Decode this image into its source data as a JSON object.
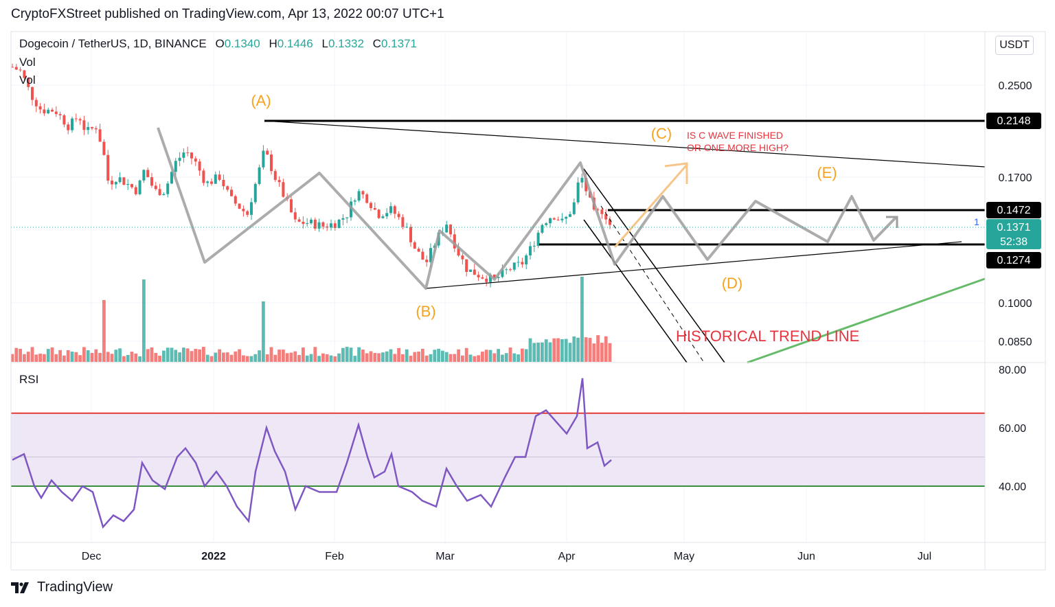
{
  "header": {
    "published_line": "CryptoFXStreet published on TradingView.com, Apr 13, 2022 00:07 UTC+1"
  },
  "symbol_bar": {
    "title": "Dogecoin / TetherUS, 1D, BINANCE",
    "open_key": "O",
    "open": "0.1340",
    "high_key": "H",
    "high": "0.1446",
    "low_key": "L",
    "low": "0.1332",
    "close_key": "C",
    "close": "0.1371"
  },
  "indicators": {
    "vol1": "Vol",
    "vol2": "Vol",
    "rsi": "RSI"
  },
  "currency_button": "USDT",
  "footer": {
    "brand": "TradingView"
  },
  "colors": {
    "up": "#26a69a",
    "down": "#ef5350",
    "orange": "#f7a21b",
    "red_text": "#e8323c",
    "trend_green": "#66bb6a",
    "rsi_line": "#7e57c2",
    "rsi_band": "#ede7f6",
    "rsi_upper": "#e53935",
    "rsi_lower": "#388e3c"
  },
  "chart_data": {
    "type": "candlestick",
    "title": "Dogecoin / TetherUS, 1D, BINANCE",
    "price_axis_ticks": [
      "0.2500",
      "0.1700",
      "0.1000",
      "0.0850"
    ],
    "price_labels": [
      {
        "text": "0.2148",
        "style": "black"
      },
      {
        "text": "0.1472",
        "style": "black"
      },
      {
        "text": "0.1371",
        "style": "teal",
        "sub": "52:38"
      },
      {
        "text": "0.1274",
        "style": "black"
      }
    ],
    "last_price": 0.1371,
    "time_ticks": [
      "Dec",
      "2022",
      "Feb",
      "Mar",
      "Apr",
      "May",
      "Jun",
      "Jul"
    ],
    "wave_labels": [
      "(A)",
      "(B)",
      "(C)",
      "(D)",
      "(E)"
    ],
    "annotations": [
      "IS C WAVE FINISHED",
      "OR ONE MORE HIGH?",
      "HISTORICAL TREND LINE",
      "1"
    ],
    "rsi": {
      "ticks": [
        "80.00",
        "60.00",
        "40.00"
      ],
      "upper": 65,
      "lower": 40,
      "mid": 50
    }
  }
}
